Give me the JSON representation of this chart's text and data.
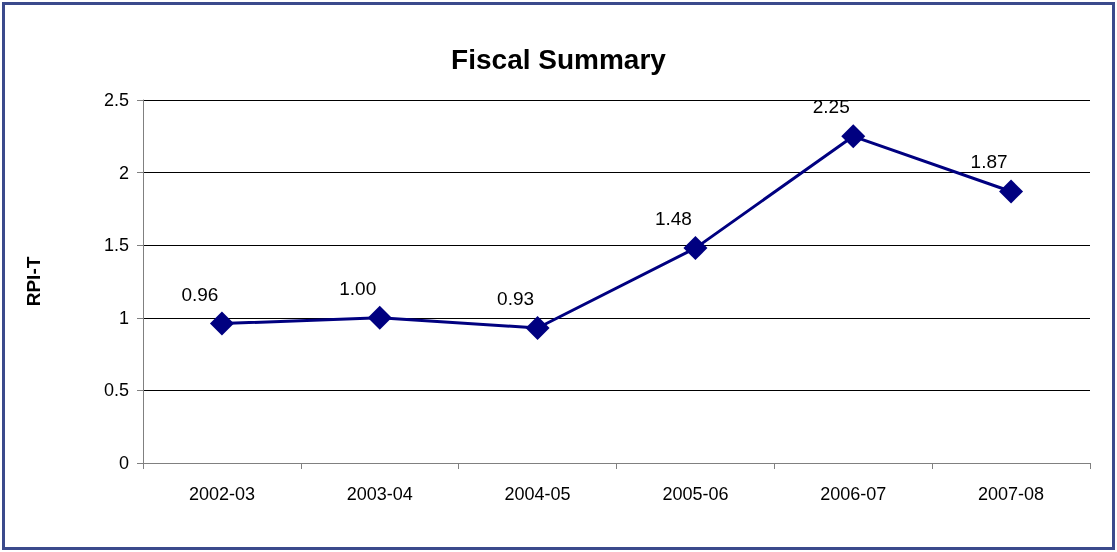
{
  "chart_data": {
    "type": "line",
    "title": "Fiscal Summary",
    "ylabel": "RPI-T",
    "categories": [
      "2002-03",
      "2003-04",
      "2004-05",
      "2005-06",
      "2006-07",
      "2007-08"
    ],
    "series": [
      {
        "color": "#000080",
        "values": [
          0.96,
          1.0,
          0.93,
          1.48,
          2.25,
          1.87
        ],
        "value_labels": [
          "0.96",
          "1.00",
          "0.93",
          "1.48",
          "2.25",
          "1.87"
        ]
      }
    ],
    "ylim": [
      0,
      2.5
    ],
    "yticks": [
      0,
      0.5,
      1,
      1.5,
      2,
      2.5
    ],
    "grid": "y",
    "marker": "diamond",
    "line_style": "solid"
  }
}
